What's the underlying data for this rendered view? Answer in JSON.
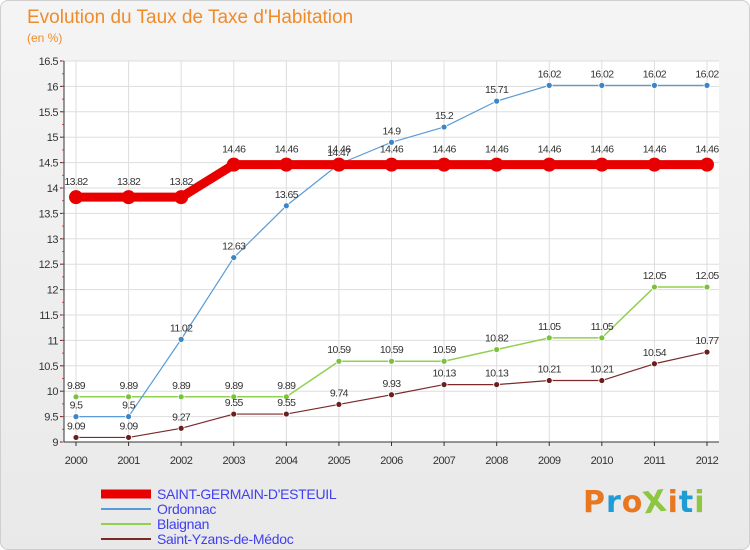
{
  "header": {
    "title": "Evolution du Taux de Taxe d'Habitation",
    "subtitle": "(en %)"
  },
  "logo": {
    "text": "ProXiti",
    "colors": [
      "#e87722",
      "#1f9bd6",
      "#e87722",
      "#8dc63f",
      "#e87722",
      "#1f9bd6",
      "#8dc63f"
    ]
  },
  "chart_data": {
    "type": "line",
    "title": "Evolution du Taux de Taxe d'Habitation",
    "ylabel": "(en %)",
    "xlabel": "",
    "x": [
      "2000",
      "2001",
      "2002",
      "2003",
      "2004",
      "2005",
      "2006",
      "2007",
      "2008",
      "2009",
      "2010",
      "2011",
      "2012"
    ],
    "ylim": [
      9,
      16.5
    ],
    "yticks": [
      "9",
      "9.5",
      "10",
      "10.5",
      "11",
      "11.5",
      "12",
      "12.5",
      "13",
      "13.5",
      "14",
      "14.5",
      "15",
      "15.5",
      "16",
      "16.5"
    ],
    "grid": true,
    "legend_position": "bottom-left",
    "series": [
      {
        "name": "SAINT-GERMAIN-D'ESTEUIL",
        "color": "#e80000",
        "values": [
          13.82,
          13.82,
          13.82,
          14.46,
          14.46,
          14.46,
          14.46,
          14.46,
          14.46,
          14.46,
          14.46,
          14.46,
          14.46
        ],
        "labels": [
          "13.82",
          "13.82",
          "13.82",
          "14.46",
          "14.46",
          "14.46",
          "14.46",
          "14.46",
          "14.46",
          "14.46",
          "14.46",
          "14.46",
          "14.46"
        ]
      },
      {
        "name": "Ordonnac",
        "color": "#5b9bd5",
        "values": [
          9.5,
          9.5,
          11.02,
          12.63,
          13.65,
          14.47,
          14.9,
          15.2,
          15.71,
          16.02,
          16.02,
          16.02,
          16.02
        ],
        "labels": [
          "9.5",
          "9.5",
          "11.02",
          "12.63",
          "13.65",
          "14.47",
          "14.9",
          "15.2",
          "15.71",
          "16.02",
          "16.02",
          "16.02",
          "16.02"
        ]
      },
      {
        "name": "Blaignan",
        "color": "#92d050",
        "values": [
          9.89,
          9.89,
          9.89,
          9.89,
          9.89,
          10.59,
          10.59,
          10.59,
          10.82,
          11.05,
          11.05,
          12.05,
          12.05
        ],
        "labels": [
          "9.89",
          "9.89",
          "9.89",
          "9.89",
          "9.89",
          "10.59",
          "10.59",
          "10.59",
          "10.82",
          "11.05",
          "11.05",
          "12.05",
          "12.05"
        ]
      },
      {
        "name": "Saint-Yzans-de-Médoc",
        "color": "#7b2a2a",
        "values": [
          9.09,
          9.09,
          9.27,
          9.55,
          9.55,
          9.74,
          9.93,
          10.13,
          10.13,
          10.21,
          10.21,
          10.54,
          10.77
        ],
        "labels": [
          "9.09",
          "9.09",
          "9.27",
          "9.55",
          "9.55",
          "9.74",
          "9.93",
          "10.13",
          "10.13",
          "10.21",
          "10.21",
          "10.54",
          "10.77"
        ]
      }
    ]
  }
}
